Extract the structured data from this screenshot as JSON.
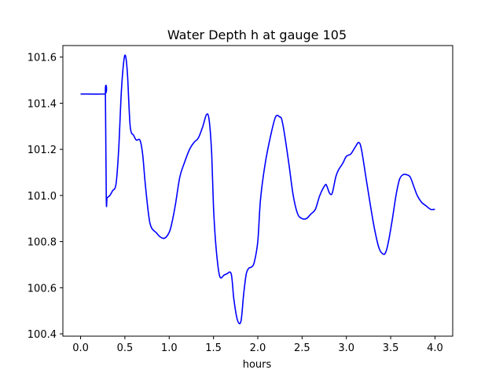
{
  "chart_data": {
    "type": "line",
    "title": "Water Depth h at gauge 105",
    "xlabel": "hours",
    "ylabel": "",
    "xlim": [
      -0.2,
      4.2
    ],
    "ylim": [
      100.39,
      101.65
    ],
    "xticks": [
      0.0,
      0.5,
      1.0,
      1.5,
      2.0,
      2.5,
      3.0,
      3.5,
      4.0
    ],
    "xtick_labels": [
      "0.0",
      "0.5",
      "1.0",
      "1.5",
      "2.0",
      "2.5",
      "3.0",
      "3.5",
      "4.0"
    ],
    "yticks": [
      100.4,
      100.6,
      100.8,
      101.0,
      101.2,
      101.4,
      101.6
    ],
    "ytick_labels": [
      "100.4",
      "100.6",
      "100.8",
      "101.0",
      "101.2",
      "101.4",
      "101.6"
    ],
    "grid": false,
    "series": [
      {
        "color": "#0000ff",
        "x": [
          0.0,
          0.27,
          0.28,
          0.29,
          0.3,
          0.33,
          0.36,
          0.4,
          0.43,
          0.46,
          0.49,
          0.51,
          0.53,
          0.56,
          0.6,
          0.63,
          0.67,
          0.7,
          0.73,
          0.77,
          0.8,
          0.85,
          0.9,
          0.95,
          1.0,
          1.03,
          1.07,
          1.12,
          1.17,
          1.23,
          1.28,
          1.33,
          1.38,
          1.42,
          1.45,
          1.48,
          1.5,
          1.53,
          1.57,
          1.62,
          1.65,
          1.7,
          1.73,
          1.77,
          1.81,
          1.84,
          1.87,
          1.9,
          1.93,
          1.96,
          2.0,
          2.03,
          2.08,
          2.14,
          2.2,
          2.25,
          2.27,
          2.3,
          2.35,
          2.4,
          2.45,
          2.5,
          2.55,
          2.6,
          2.65,
          2.7,
          2.76,
          2.78,
          2.81,
          2.84,
          2.88,
          2.91,
          2.96,
          3.0,
          3.05,
          3.1,
          3.14,
          3.17,
          3.22,
          3.27,
          3.32,
          3.37,
          3.42,
          3.45,
          3.48,
          3.52,
          3.56,
          3.6,
          3.64,
          3.68,
          3.72,
          3.76,
          3.8,
          3.85,
          3.9,
          3.95,
          4.0
        ],
        "y": [
          101.44,
          101.44,
          101.445,
          100.985,
          100.99,
          101.0,
          101.02,
          101.05,
          101.2,
          101.45,
          101.59,
          101.6,
          101.52,
          101.3,
          101.26,
          101.24,
          101.24,
          101.18,
          101.05,
          100.91,
          100.86,
          100.84,
          100.82,
          100.815,
          100.84,
          100.88,
          100.96,
          101.08,
          101.14,
          101.2,
          101.23,
          101.25,
          101.3,
          101.35,
          101.33,
          101.18,
          100.95,
          100.77,
          100.65,
          100.655,
          100.66,
          100.66,
          100.55,
          100.46,
          100.455,
          100.57,
          100.66,
          100.685,
          100.69,
          100.71,
          100.8,
          100.98,
          101.13,
          101.25,
          101.34,
          101.34,
          101.33,
          101.27,
          101.14,
          101.0,
          100.92,
          100.9,
          100.9,
          100.92,
          100.94,
          101.0,
          101.045,
          101.04,
          101.01,
          101.01,
          101.08,
          101.11,
          101.14,
          101.17,
          101.18,
          101.21,
          101.23,
          101.2,
          101.08,
          100.96,
          100.85,
          100.77,
          100.745,
          100.76,
          100.81,
          100.9,
          101.0,
          101.07,
          101.09,
          101.09,
          101.08,
          101.04,
          101.0,
          100.97,
          100.955,
          100.94,
          100.94
        ]
      }
    ]
  }
}
